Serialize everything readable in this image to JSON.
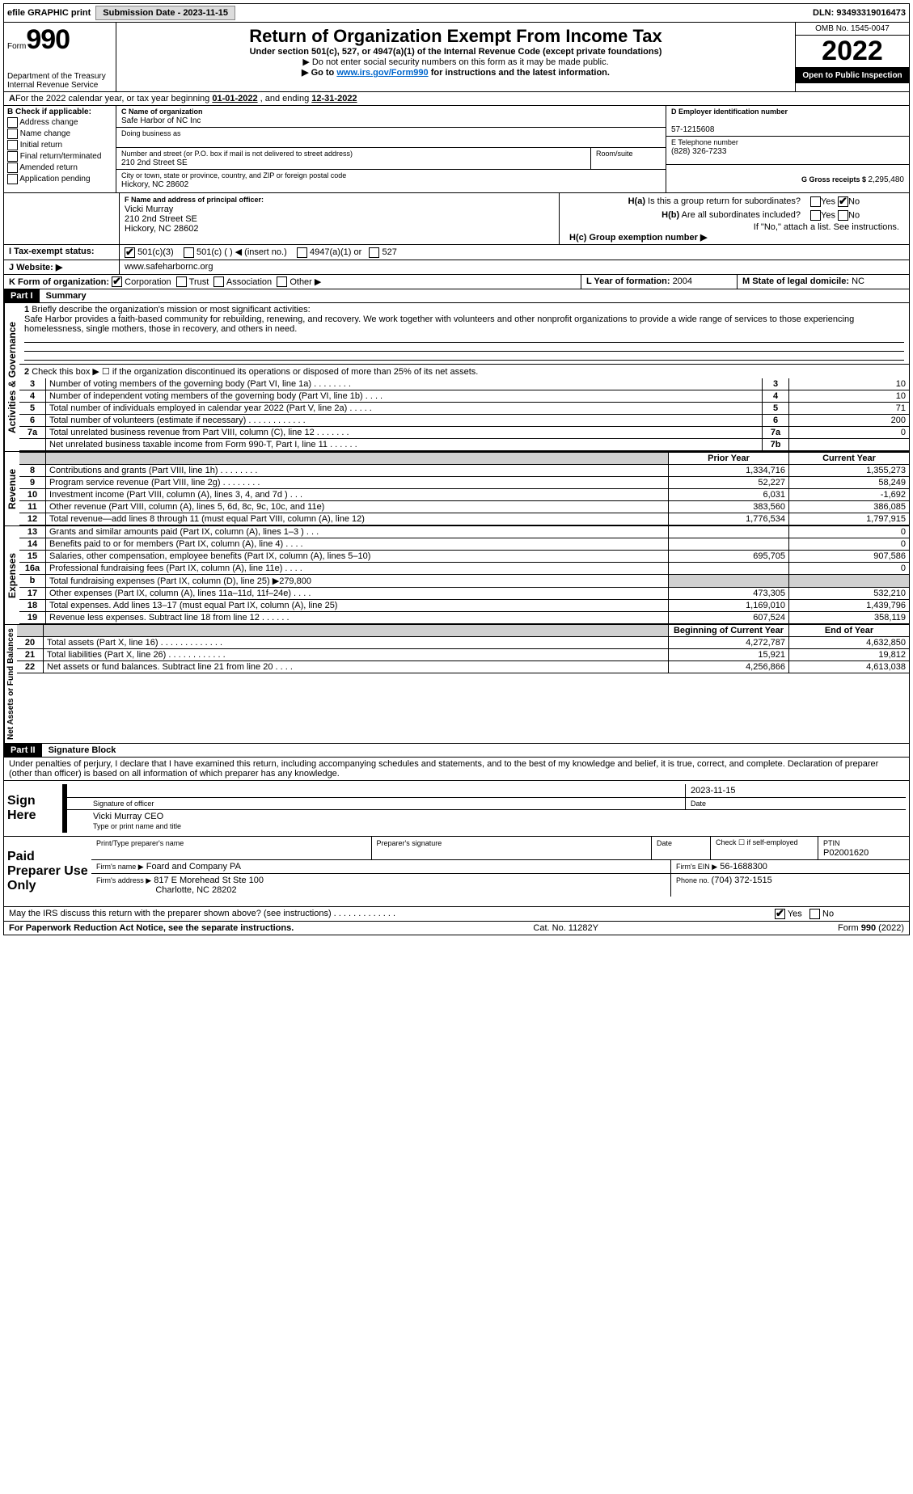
{
  "topbar": {
    "efile": "efile GRAPHIC print",
    "submission_label": "Submission Date - 2023-11-15",
    "dln": "DLN: 93493319016473"
  },
  "header": {
    "form_word": "Form",
    "form_num": "990",
    "dept": "Department of the Treasury",
    "irs": "Internal Revenue Service",
    "title": "Return of Organization Exempt From Income Tax",
    "sub1": "Under section 501(c), 527, or 4947(a)(1) of the Internal Revenue Code (except private foundations)",
    "sub2": "▶ Do not enter social security numbers on this form as it may be made public.",
    "sub3_pre": "▶ Go to ",
    "sub3_link": "www.irs.gov/Form990",
    "sub3_post": " for instructions and the latest information.",
    "omb": "OMB No. 1545-0047",
    "year": "2022",
    "open": "Open to Public Inspection"
  },
  "line_a": {
    "text_pre": "For the 2022 calendar year, or tax year beginning ",
    "begin": "01-01-2022",
    "mid": "   , and ending ",
    "end": "12-31-2022"
  },
  "section_b": {
    "header": "B Check if applicable:",
    "items": [
      "Address change",
      "Name change",
      "Initial return",
      "Final return/terminated",
      "Amended return",
      "Application pending"
    ]
  },
  "section_c": {
    "c_label": "C Name of organization",
    "c_name": "Safe Harbor of NC Inc",
    "dba_label": "Doing business as",
    "dba": "",
    "addr_label": "Number and street (or P.O. box if mail is not delivered to street address)",
    "room_label": "Room/suite",
    "addr": "210 2nd Street SE",
    "city_label": "City or town, state or province, country, and ZIP or foreign postal code",
    "city": "Hickory, NC  28602"
  },
  "section_d": {
    "d_label": "D Employer identification number",
    "ein": "57-1215608",
    "e_label": "E Telephone number",
    "phone": "(828) 326-7233",
    "g_label": "G Gross receipts $ ",
    "g_val": "2,295,480"
  },
  "section_f": {
    "f_label": "F Name and address of principal officer:",
    "name": "Vicki Murray",
    "addr1": "210 2nd Street SE",
    "addr2": "Hickory, NC  28602"
  },
  "section_h": {
    "ha_label": "H(a)  Is this a group return for subordinates?",
    "hb_label": "H(b)  Are all subordinates included?",
    "hb_note": "If \"No,\" attach a list. See instructions.",
    "hc_label": "H(c)  Group exemption number ▶",
    "yes": "Yes",
    "no": "No"
  },
  "section_i": {
    "label": "I   Tax-exempt status:",
    "opts": [
      "501(c)(3)",
      "501(c) (  ) ◀ (insert no.)",
      "4947(a)(1) or",
      "527"
    ]
  },
  "section_j": {
    "label": "J   Website: ▶",
    "val": "www.safeharbornc.org"
  },
  "section_k": {
    "label": "K Form of organization:",
    "opts": [
      "Corporation",
      "Trust",
      "Association",
      "Other ▶"
    ]
  },
  "section_l": {
    "label": "L Year of formation: ",
    "val": "2004"
  },
  "section_m": {
    "label": "M State of legal domicile: ",
    "val": "NC"
  },
  "part1": {
    "hdr": "Part I",
    "title": "Summary",
    "tab_gov": "Activities & Governance",
    "tab_rev": "Revenue",
    "tab_exp": "Expenses",
    "tab_net": "Net Assets or Fund Balances",
    "q1_label": "1",
    "q1_text": "Briefly describe the organization's mission or most significant activities:",
    "q1_body": "Safe Harbor provides a faith-based community for rebuilding, renewing, and recovery. We work together with volunteers and other nonprofit organizations to provide a wide range of services to those experiencing homelessness, single mothers, those in recovery, and others in need.",
    "q2_num": "2",
    "q2_text": "Check this box ▶ ☐ if the organization discontinued its operations or disposed of more than 25% of its net assets.",
    "rows_gov": [
      {
        "n": "3",
        "d": "Number of voting members of the governing body (Part VI, line 1a)   .    .    .    .    .    .    .    .",
        "b": "3",
        "v": "10"
      },
      {
        "n": "4",
        "d": "Number of independent voting members of the governing body (Part VI, line 1b)    .    .    .    .",
        "b": "4",
        "v": "10"
      },
      {
        "n": "5",
        "d": "Total number of individuals employed in calendar year 2022 (Part V, line 2a)   .    .    .    .    .",
        "b": "5",
        "v": "71"
      },
      {
        "n": "6",
        "d": "Total number of volunteers (estimate if necessary)    .    .    .    .    .    .    .    .    .    .    .    .",
        "b": "6",
        "v": "200"
      },
      {
        "n": "7a",
        "d": "Total unrelated business revenue from Part VIII, column (C), line 12   .    .    .    .    .    .    .",
        "b": "7a",
        "v": "0"
      },
      {
        "n": "",
        "d": "Net unrelated business taxable income from Form 990-T, Part I, line 11    .    .    .    .    .    .",
        "b": "7b",
        "v": ""
      }
    ],
    "col_prior": "Prior Year",
    "col_current": "Current Year",
    "rows_rev": [
      {
        "n": "8",
        "d": "Contributions and grants (Part VIII, line 1h)    .    .    .    .    .    .    .    .",
        "p": "1,334,716",
        "c": "1,355,273"
      },
      {
        "n": "9",
        "d": "Program service revenue (Part VIII, line 2g)    .    .    .    .    .    .    .    .",
        "p": "52,227",
        "c": "58,249"
      },
      {
        "n": "10",
        "d": "Investment income (Part VIII, column (A), lines 3, 4, and 7d )    .    .    .",
        "p": "6,031",
        "c": "-1,692"
      },
      {
        "n": "11",
        "d": "Other revenue (Part VIII, column (A), lines 5, 6d, 8c, 9c, 10c, and 11e)",
        "p": "383,560",
        "c": "386,085"
      },
      {
        "n": "12",
        "d": "Total revenue—add lines 8 through 11 (must equal Part VIII, column (A), line 12)",
        "p": "1,776,534",
        "c": "1,797,915"
      }
    ],
    "rows_exp": [
      {
        "n": "13",
        "d": "Grants and similar amounts paid (Part IX, column (A), lines 1–3 )   .    .    .",
        "p": "",
        "c": "0"
      },
      {
        "n": "14",
        "d": "Benefits paid to or for members (Part IX, column (A), line 4)   .    .    .    .",
        "p": "",
        "c": "0"
      },
      {
        "n": "15",
        "d": "Salaries, other compensation, employee benefits (Part IX, column (A), lines 5–10)",
        "p": "695,705",
        "c": "907,586"
      },
      {
        "n": "16a",
        "d": "Professional fundraising fees (Part IX, column (A), line 11e)   .    .    .    .",
        "p": "",
        "c": "0"
      },
      {
        "n": "b",
        "d": "Total fundraising expenses (Part IX, column (D), line 25) ▶279,800",
        "p": "GRAY",
        "c": "GRAY"
      },
      {
        "n": "17",
        "d": "Other expenses (Part IX, column (A), lines 11a–11d, 11f–24e)    .    .    .    .",
        "p": "473,305",
        "c": "532,210"
      },
      {
        "n": "18",
        "d": "Total expenses. Add lines 13–17 (must equal Part IX, column (A), line 25)",
        "p": "1,169,010",
        "c": "1,439,796"
      },
      {
        "n": "19",
        "d": "Revenue less expenses. Subtract line 18 from line 12   .    .    .    .    .    .",
        "p": "607,524",
        "c": "358,119"
      }
    ],
    "col_begin": "Beginning of Current Year",
    "col_end": "End of Year",
    "rows_net": [
      {
        "n": "20",
        "d": "Total assets (Part X, line 16)   .    .    .    .    .    .    .    .    .    .    .    .    .",
        "p": "4,272,787",
        "c": "4,632,850"
      },
      {
        "n": "21",
        "d": "Total liabilities (Part X, line 26)   .    .    .    .    .    .    .    .    .    .    .    .",
        "p": "15,921",
        "c": "19,812"
      },
      {
        "n": "22",
        "d": "Net assets or fund balances. Subtract line 21 from line 20    .    .    .    .",
        "p": "4,256,866",
        "c": "4,613,038"
      }
    ]
  },
  "part2": {
    "hdr": "Part II",
    "title": "Signature Block",
    "decl": "Under penalties of perjury, I declare that I have examined this return, including accompanying schedules and statements, and to the best of my knowledge and belief, it is true, correct, and complete. Declaration of preparer (other than officer) is based on all information of which preparer has any knowledge.",
    "sign_here": "Sign Here",
    "sig_officer": "Signature of officer",
    "sig_date": "2023-11-15",
    "date_label": "Date",
    "name_title": "Vicki Murray CEO",
    "type_label": "Type or print name and title",
    "paid": "Paid Preparer Use Only",
    "prep_name_label": "Print/Type preparer's name",
    "prep_sig_label": "Preparer's signature",
    "prep_date_label": "Date",
    "check_self": "Check ☐ if self-employed",
    "ptin_label": "PTIN",
    "ptin": "P02001620",
    "firm_name_label": "Firm's name    ▶",
    "firm_name": "Foard and Company PA",
    "firm_ein_label": "Firm's EIN ▶",
    "firm_ein": "56-1688300",
    "firm_addr_label": "Firm's address ▶",
    "firm_addr1": "817 E Morehead St Ste 100",
    "firm_addr2": "Charlotte, NC  28202",
    "firm_phone_label": "Phone no. ",
    "firm_phone": "(704) 372-1515",
    "discuss": "May the IRS discuss this return with the preparer shown above? (see instructions)    .    .    .    .    .    .    .    .    .    .    .    .    .",
    "yes": "Yes",
    "no": "No"
  },
  "footer": {
    "left": "For Paperwork Reduction Act Notice, see the separate instructions.",
    "mid": "Cat. No. 11282Y",
    "right": "Form 990 (2022)"
  }
}
